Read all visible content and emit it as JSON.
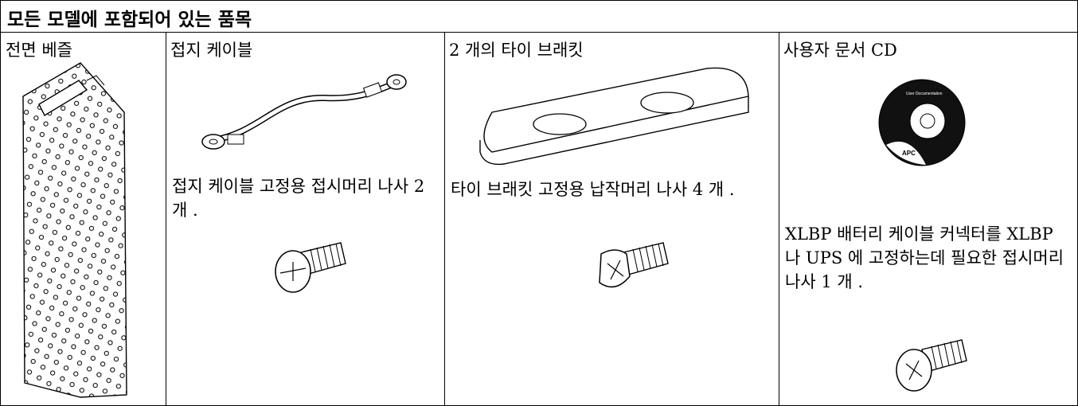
{
  "header": {
    "title": "모든 모델에 포함되어 있는 품목"
  },
  "columns": [
    {
      "heading": "전면 베즐"
    },
    {
      "heading": "접지 케이블",
      "description": "접지 케이블 고정용 접시머리 나사 2 개 ."
    },
    {
      "heading": "2 개의 타이 브래킷",
      "description": "타이 브래킷 고정용 납작머리 나사 4 개 ."
    },
    {
      "heading": "사용자 문서 CD",
      "description": "XLBP 배터리 케이블 커넥터를 XLBP 나 UPS 에 고정하는데 필요한 접시머리 나사 1 개 .",
      "cd_label": "User Documentation",
      "cd_brand": "APC"
    }
  ]
}
